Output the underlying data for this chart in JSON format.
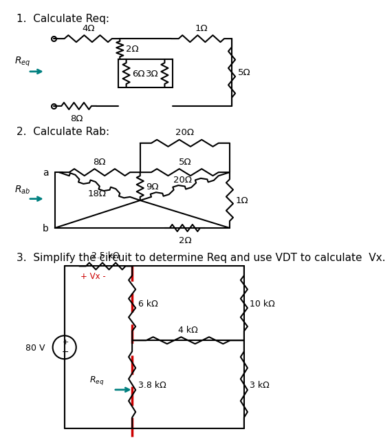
{
  "title1": "1.  Calculate Req:",
  "title2": "2.  Calculate Rab:",
  "title3": "3.  Simplify the circuit to determine Req and use VDT to calculate  Vx.",
  "bg_color": "#ffffff",
  "teal_color": "#008080",
  "red_color": "#cc0000",
  "font_size_title": 11
}
